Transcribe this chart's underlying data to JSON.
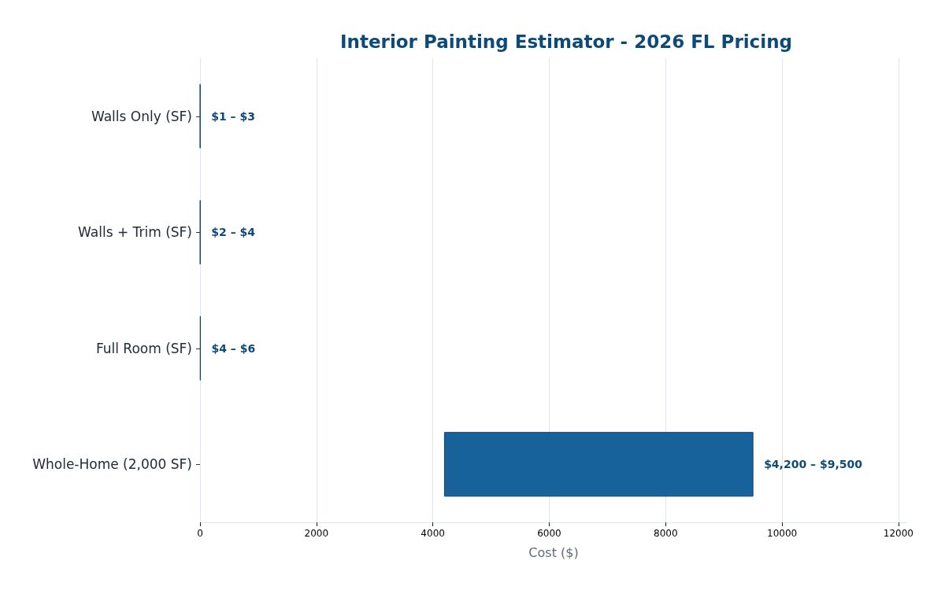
{
  "chart_data": {
    "type": "bar",
    "title": "Interior Painting Estimator - 2026 FL Pricing",
    "xlabel": "Cost ($)",
    "orientation": "horizontal",
    "categories": [
      "Walls Only (SF)",
      "Walls + Trim (SF)",
      "Full Room (SF)",
      "Whole-Home (2,000 SF)"
    ],
    "base": [
      1,
      2,
      4,
      4200
    ],
    "values": [
      2,
      2,
      2,
      5300
    ],
    "annotations": [
      {
        "text": "$1 – $3",
        "x": 3,
        "y": "Walls Only (SF)"
      },
      {
        "text": "$2 – $4",
        "x": 4,
        "y": "Walls + Trim (SF)"
      },
      {
        "text": "$4 – $6",
        "x": 6,
        "y": "Full Room (SF)"
      },
      {
        "text": "$4,200 – $9,500",
        "x": 9500,
        "y": "Whole-Home (2,000 SF)"
      }
    ],
    "color": "#17629a",
    "xlim": [
      0,
      12150
    ],
    "xticks": [
      0,
      2000,
      4000,
      6000,
      8000,
      10000,
      12000
    ],
    "grid": "x"
  }
}
